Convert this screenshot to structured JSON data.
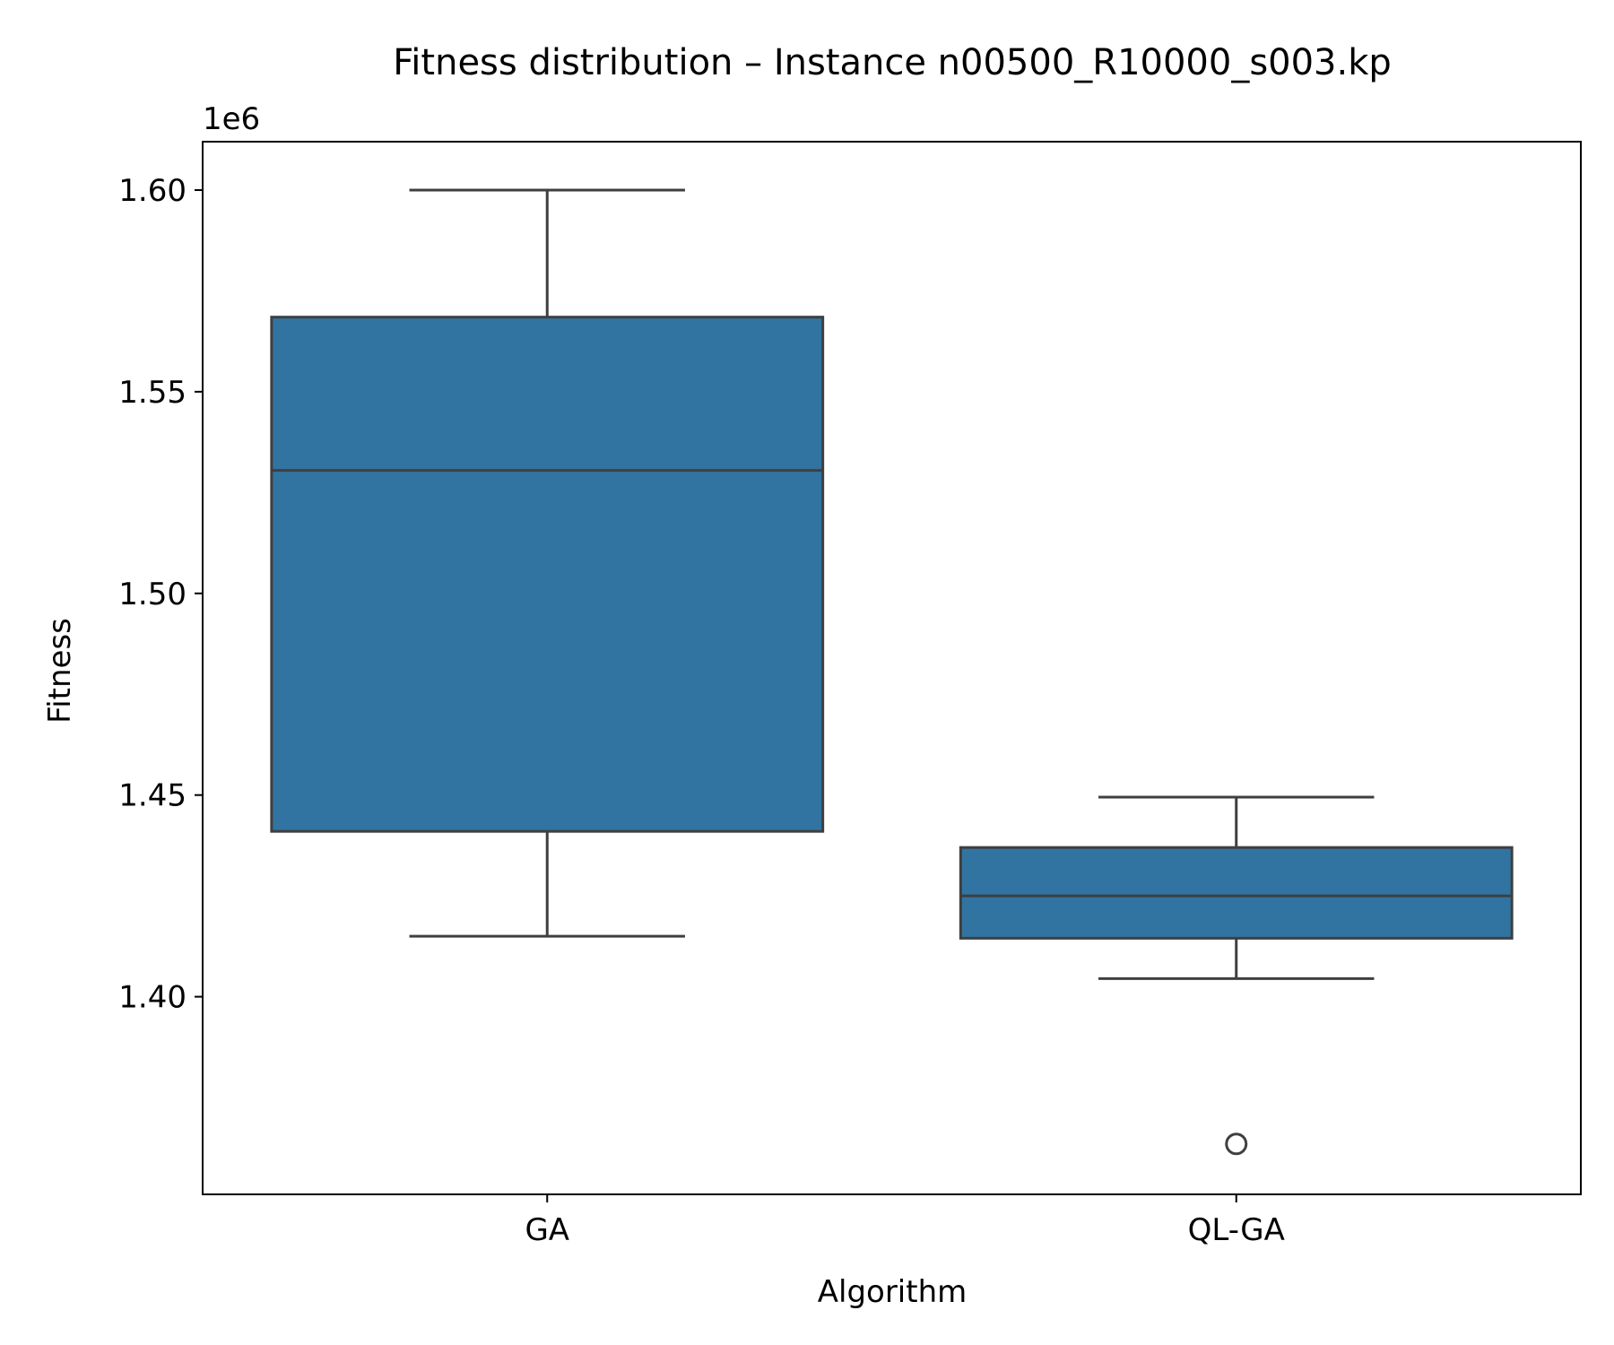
{
  "chart_data": {
    "type": "box",
    "title": "Fitness distribution – Instance n00500_R10000_s003.kp",
    "xlabel": "Algorithm",
    "ylabel": "Fitness",
    "y_offset_label": "1e6",
    "y_scale": 1000000,
    "ylim": [
      1.351,
      1.612
    ],
    "y_ticks": [
      1.4,
      1.45,
      1.5,
      1.55,
      1.6
    ],
    "y_tick_labels": [
      "1.40",
      "1.45",
      "1.50",
      "1.55",
      "1.60"
    ],
    "categories": [
      "GA",
      "QL-GA"
    ],
    "box_color": "#3274a1",
    "line_color": "#3f3f3f",
    "boxes": [
      {
        "name": "GA",
        "whisker_low": 1.415,
        "q1": 1.441,
        "median": 1.5305,
        "q3": 1.5685,
        "whisker_high": 1.6,
        "outliers": []
      },
      {
        "name": "QL-GA",
        "whisker_low": 1.4045,
        "q1": 1.4145,
        "median": 1.425,
        "q3": 1.437,
        "whisker_high": 1.4495,
        "outliers": [
          1.3635
        ]
      }
    ]
  }
}
